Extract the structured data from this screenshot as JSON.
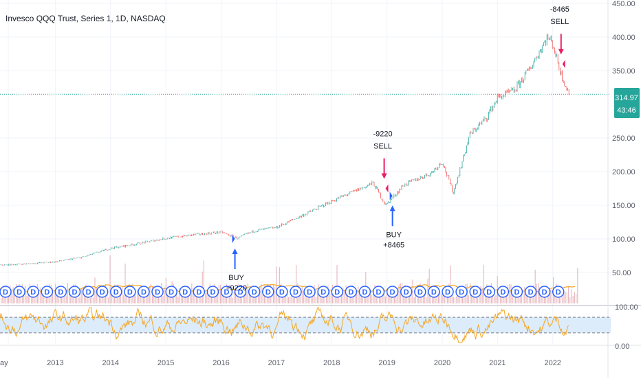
{
  "header": {
    "title": "Invesco QQQ Trust, Series 1, 1D, NASDAQ"
  },
  "colors": {
    "candle_up": "#26a69a",
    "candle_down": "#ef5350",
    "volume": "#e0a0a6",
    "volume_ma": "#f5a623",
    "rsi_line": "#f5a623",
    "rsi_band": "#dcecfa",
    "buy_arrow": "#2962ff",
    "sell_arrow": "#e91e63",
    "dividend_marker": "#2962ff",
    "price_line": "#26a69a",
    "grid": "#f0f3fa"
  },
  "price_badge": {
    "price": "314.97",
    "countdown": "43:46"
  },
  "chart_data": [
    {
      "type": "line",
      "name": "price",
      "x": [
        2012.0,
        2012.5,
        2013.0,
        2013.5,
        2014.0,
        2014.5,
        2015.0,
        2015.5,
        2016.0,
        2016.3,
        2016.6,
        2017.0,
        2017.5,
        2018.0,
        2018.75,
        2018.98,
        2019.3,
        2019.8,
        2020.0,
        2020.2,
        2020.5,
        2020.8,
        2021.0,
        2021.3,
        2021.6,
        2021.9,
        2022.0,
        2022.15,
        2022.3
      ],
      "values": [
        61,
        63,
        66,
        73,
        86,
        93,
        101,
        106,
        110,
        101,
        112,
        117,
        136,
        156,
        183,
        150,
        180,
        198,
        215,
        168,
        255,
        280,
        310,
        320,
        355,
        400,
        390,
        345,
        315
      ],
      "ylim": [
        0,
        450
      ]
    },
    {
      "type": "scatter",
      "name": "trade_signals",
      "points": [
        {
          "signal": "BUY",
          "amount": "+9220",
          "x": 2016.25,
          "y": 102
        },
        {
          "signal": "SELL",
          "amount": "-9220",
          "x": 2018.95,
          "y": 177
        },
        {
          "signal": "BUY",
          "amount": "+8465",
          "x": 2019.1,
          "y": 166
        },
        {
          "signal": "SELL",
          "amount": "-8465",
          "x": 2022.15,
          "y": 362
        }
      ]
    },
    {
      "type": "line",
      "name": "rsi",
      "ylim": [
        0,
        100
      ],
      "bands": [
        30,
        70
      ],
      "yticks": [
        "100.00",
        "0.00"
      ]
    },
    {
      "type": "bar",
      "name": "volume"
    }
  ],
  "axes": {
    "x_ticks": [
      {
        "label": "ay",
        "x": 2012.15
      },
      {
        "label": "2013",
        "x": 2013.0
      },
      {
        "label": "2014",
        "x": 2014.0
      },
      {
        "label": "2015",
        "x": 2015.0
      },
      {
        "label": "2016",
        "x": 2016.0
      },
      {
        "label": "2017",
        "x": 2017.0
      },
      {
        "label": "2018",
        "x": 2018.0
      },
      {
        "label": "2019",
        "x": 2019.0
      },
      {
        "label": "2020",
        "x": 2020.0
      },
      {
        "label": "2021",
        "x": 2021.0
      },
      {
        "label": "2022",
        "x": 2022.0
      }
    ],
    "y_ticks": [
      "450.00",
      "400.00",
      "350.00",
      "250.00",
      "200.00",
      "150.00",
      "100.00",
      "50.00"
    ],
    "y_tick_values": [
      450,
      400,
      350,
      250,
      200,
      150,
      100,
      50
    ]
  },
  "dividends": {
    "glyph": "D",
    "x": [
      2012.1,
      2012.35,
      2012.6,
      2012.85,
      2013.1,
      2013.35,
      2013.6,
      2013.85,
      2014.1,
      2014.35,
      2014.6,
      2014.85,
      2015.1,
      2015.35,
      2015.6,
      2015.85,
      2016.1,
      2016.35,
      2016.6,
      2016.85,
      2017.1,
      2017.35,
      2017.6,
      2017.85,
      2018.1,
      2018.35,
      2018.6,
      2018.85,
      2019.1,
      2019.35,
      2019.6,
      2019.85,
      2020.1,
      2020.35,
      2020.6,
      2020.85,
      2021.1,
      2021.35,
      2021.6,
      2021.85,
      2022.1
    ]
  }
}
